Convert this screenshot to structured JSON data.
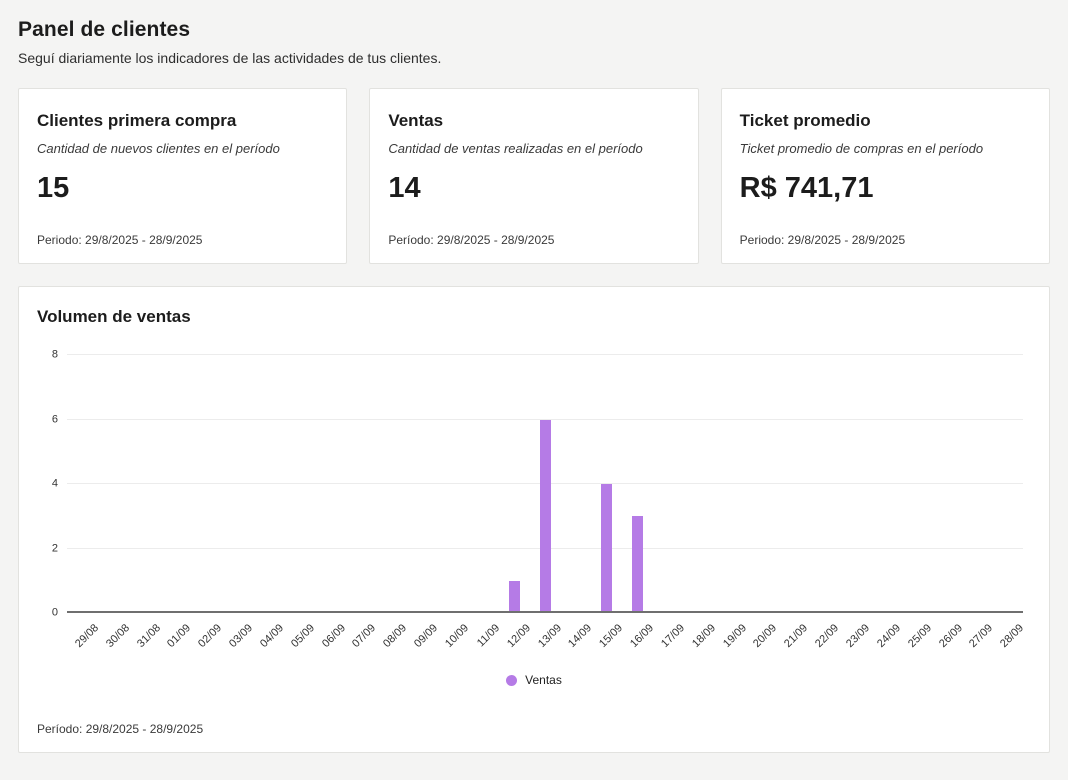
{
  "page": {
    "title": "Panel de clientes",
    "subtitle": "Seguí diariamente los indicadores de las actividades de tus clientes."
  },
  "cards": [
    {
      "title": "Clientes primera compra",
      "description": "Cantidad de nuevos clientes en el período",
      "value": "15",
      "period": "Periodo: 29/8/2025 - 28/9/2025"
    },
    {
      "title": "Ventas",
      "description": "Cantidad de ventas realizadas en el período",
      "value": "14",
      "period": "Período: 29/8/2025 - 28/9/2025"
    },
    {
      "title": "Ticket promedio",
      "description": "Ticket promedio de compras en el período",
      "value": "R$ 741,71",
      "period": "Periodo: 29/8/2025 - 28/9/2025"
    }
  ],
  "chart": {
    "title": "Volumen de ventas",
    "legend": "Ventas",
    "period": "Período: 29/8/2025 - 28/9/2025",
    "bar_color": "#b57be6"
  },
  "chart_data": {
    "type": "bar",
    "title": "Volumen de ventas",
    "categories": [
      "29/08",
      "30/08",
      "31/08",
      "01/09",
      "02/09",
      "03/09",
      "04/09",
      "05/09",
      "06/09",
      "07/09",
      "08/09",
      "09/09",
      "10/09",
      "11/09",
      "12/09",
      "13/09",
      "14/09",
      "15/09",
      "16/09",
      "17/09",
      "18/09",
      "19/09",
      "20/09",
      "21/09",
      "22/09",
      "23/09",
      "24/09",
      "25/09",
      "26/09",
      "27/09",
      "28/09"
    ],
    "values": [
      0,
      0,
      0,
      0,
      0,
      0,
      0,
      0,
      0,
      0,
      0,
      0,
      0,
      0,
      1,
      6,
      0,
      4,
      3,
      0,
      0,
      0,
      0,
      0,
      0,
      0,
      0,
      0,
      0,
      0,
      0
    ],
    "xlabel": "",
    "ylabel": "",
    "ylim": [
      0,
      8
    ],
    "yticks": [
      0,
      2,
      4,
      6,
      8
    ],
    "grid": true,
    "legend": [
      "Ventas"
    ],
    "legend_position": "bottom",
    "bar_color": "#b57be6"
  }
}
